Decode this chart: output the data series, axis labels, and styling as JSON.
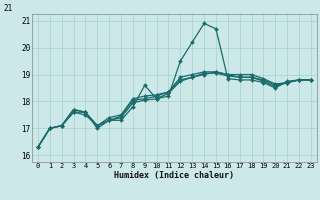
{
  "xlabel": "Humidex (Indice chaleur)",
  "bg_color": "#cde8e8",
  "grid_color": "#aad4d4",
  "line_color": "#1a6b6b",
  "xlim": [
    -0.5,
    23.5
  ],
  "ylim": [
    15.75,
    21.25
  ],
  "yticks": [
    16,
    17,
    18,
    19,
    20,
    21
  ],
  "xticks": [
    0,
    1,
    2,
    3,
    4,
    5,
    6,
    7,
    8,
    9,
    10,
    11,
    12,
    13,
    14,
    15,
    16,
    17,
    18,
    19,
    20,
    21,
    22,
    23
  ],
  "series": [
    [
      16.3,
      17.0,
      17.1,
      17.7,
      17.6,
      17.0,
      17.3,
      17.3,
      17.8,
      18.6,
      18.1,
      18.2,
      19.5,
      20.2,
      20.9,
      20.7,
      18.85,
      18.8,
      18.8,
      18.7,
      18.5,
      18.75,
      18.8,
      18.8
    ],
    [
      16.3,
      17.0,
      17.1,
      17.6,
      17.6,
      17.1,
      17.3,
      17.4,
      17.95,
      18.05,
      18.1,
      18.3,
      18.75,
      18.9,
      19.0,
      19.1,
      19.0,
      18.9,
      18.9,
      18.75,
      18.55,
      18.7,
      18.8,
      18.8
    ],
    [
      16.3,
      17.0,
      17.1,
      17.6,
      17.5,
      17.1,
      17.3,
      17.45,
      18.05,
      18.1,
      18.2,
      18.35,
      18.8,
      18.9,
      19.05,
      19.05,
      18.95,
      18.9,
      18.9,
      18.8,
      18.6,
      18.7,
      18.8,
      18.8
    ],
    [
      16.3,
      17.0,
      17.1,
      17.7,
      17.6,
      17.1,
      17.4,
      17.5,
      18.1,
      18.2,
      18.25,
      18.35,
      18.9,
      19.0,
      19.1,
      19.1,
      19.0,
      19.0,
      19.0,
      18.85,
      18.65,
      18.7,
      18.8,
      18.8
    ]
  ]
}
